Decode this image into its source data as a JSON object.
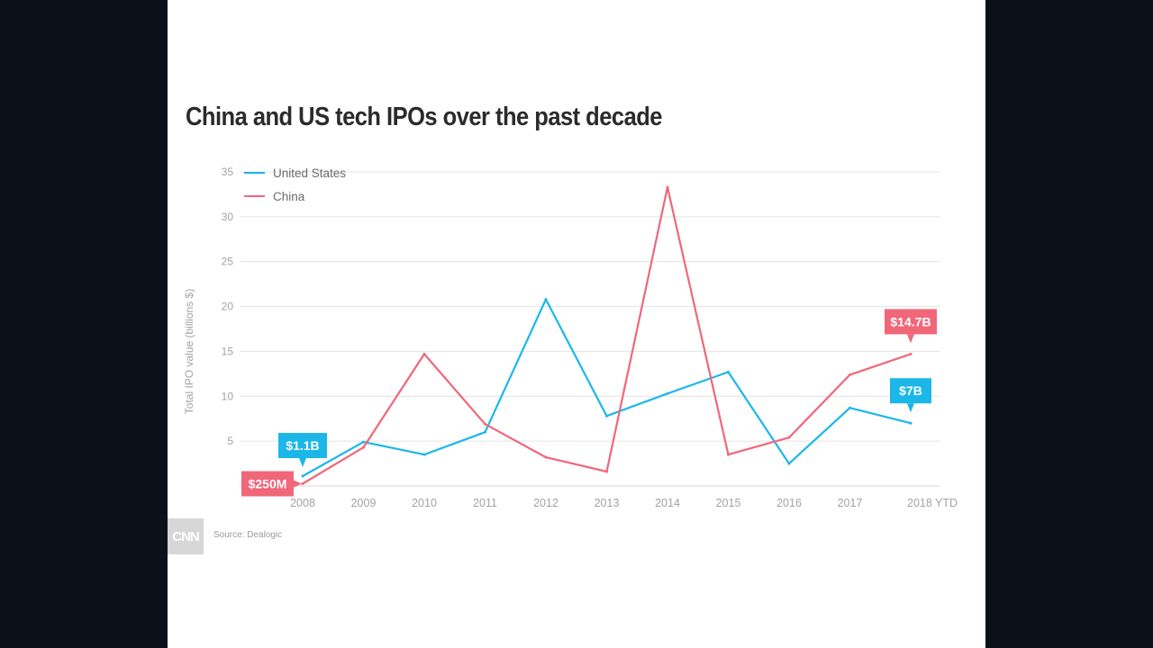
{
  "colors": {
    "background": "#0b1118",
    "panel": "#ffffff",
    "us": "#1bb7e8",
    "china": "#f0677a",
    "grid": "#e4e4e4",
    "axis_text": "#a3a3a3"
  },
  "chart_data": {
    "type": "line",
    "title": "China and US tech IPOs over the past decade",
    "xlabel": "",
    "ylabel": "Total IPO value (billions $)",
    "categories": [
      "2008",
      "2009",
      "2010",
      "2011",
      "2012",
      "2013",
      "2014",
      "2015",
      "2016",
      "2017",
      "2018 YTD"
    ],
    "yticks": [
      5,
      10,
      15,
      20,
      25,
      30,
      35
    ],
    "ylim": [
      0,
      35
    ],
    "grid": true,
    "legend": "top-left",
    "series": [
      {
        "name": "United States",
        "color": "#1bb7e8",
        "values": [
          1.1,
          4.9,
          3.5,
          6.0,
          20.8,
          7.8,
          10.3,
          12.7,
          2.5,
          8.7,
          7.0
        ]
      },
      {
        "name": "China",
        "color": "#f0677a",
        "values": [
          0.25,
          4.3,
          14.7,
          6.9,
          3.2,
          1.6,
          33.3,
          3.5,
          5.4,
          12.4,
          14.7
        ]
      }
    ],
    "annotations": [
      {
        "series": "United States",
        "index": 0,
        "text": "$1.1B"
      },
      {
        "series": "China",
        "index": 0,
        "text": "$250M"
      },
      {
        "series": "China",
        "index": 10,
        "text": "$14.7B"
      },
      {
        "series": "United States",
        "index": 10,
        "text": "$7B"
      }
    ]
  },
  "footer": {
    "logo": "CNN",
    "source": "Source: Dealogic"
  }
}
